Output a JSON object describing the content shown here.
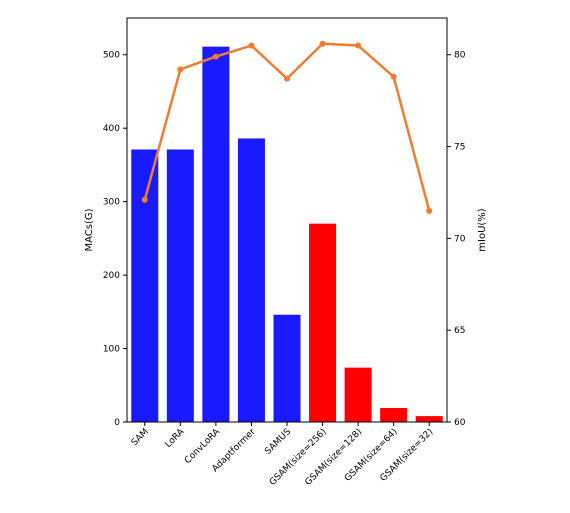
{
  "chart_data": {
    "type": "bar",
    "categories": [
      "SAM",
      "LoRA",
      "ConvLoRA",
      "Adaptformer",
      "SAMUS",
      "GSAM(size=256)",
      "GSAM(size=128)",
      "GSAM(size=64)",
      "GSAM(size=32)"
    ],
    "series": [
      {
        "type": "bar",
        "axis": "left",
        "values": [
          371,
          371,
          511,
          386,
          146,
          270,
          74,
          19,
          8
        ],
        "colors": [
          "#1a1aff",
          "#1a1aff",
          "#1a1aff",
          "#1a1aff",
          "#1a1aff",
          "#ff0000",
          "#ff0000",
          "#ff0000",
          "#ff0000"
        ]
      },
      {
        "type": "line",
        "axis": "right",
        "values": [
          72.1,
          79.2,
          79.9,
          80.5,
          78.7,
          80.6,
          80.5,
          78.8,
          71.5
        ],
        "color": "#ed7d31"
      }
    ],
    "title": "",
    "xlabel": "",
    "ylabel": "MACs(G)",
    "ylabel_right": "mIoU(%)",
    "ylim": [
      0,
      550
    ],
    "ylim_right": [
      60,
      82
    ],
    "yticks": [
      0,
      100,
      200,
      300,
      400,
      500
    ],
    "yticks_right": [
      60,
      65,
      70,
      75,
      80
    ],
    "grid": false,
    "legend": "none"
  }
}
